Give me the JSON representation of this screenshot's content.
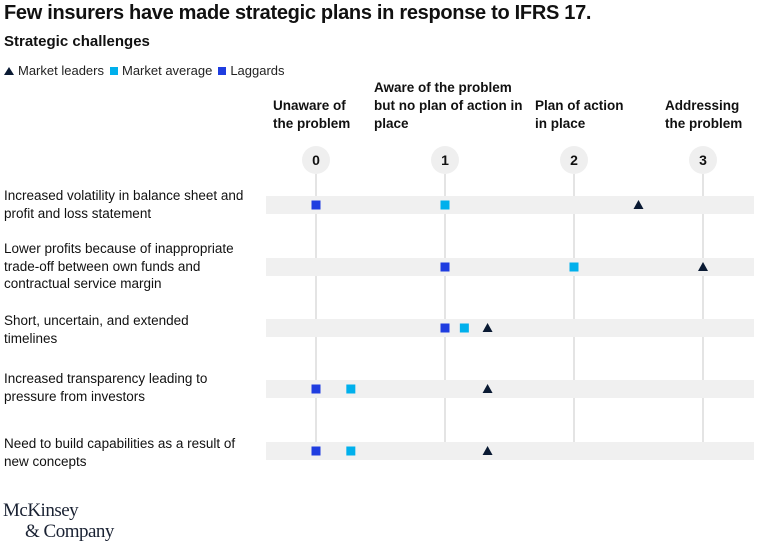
{
  "chart_data": {
    "type": "scatter",
    "title": "Few insurers have made strategic plans in response to IFRS 17.",
    "subtitle": "Strategic challenges",
    "legend": [
      {
        "name": "Market leaders",
        "marker": "triangle",
        "color": "#0a1a33"
      },
      {
        "name": "Market average",
        "marker": "square",
        "color": "#00b0ec"
      },
      {
        "name": "Laggards",
        "marker": "square",
        "color": "#1f3de0"
      }
    ],
    "legend_placement": "top-left",
    "x_ticks": [
      0,
      1,
      2,
      3
    ],
    "x_tick_labels": [
      "Unaware of the problem",
      "Aware of the problem but no plan of action in place",
      "Plan of action in place",
      "Addressing the problem"
    ],
    "xlim": [
      0,
      3
    ],
    "categories": [
      "Increased  volatility in balance sheet and profit and loss statement",
      "Lower profits because of inappropriate trade-off between own funds and contractual service margin",
      "Short, uncertain, and extended timelines",
      "Increased transparency leading to pressure from investors",
      "Need to build capabilities as a result of new concepts"
    ],
    "series": [
      {
        "name": "Market leaders",
        "values": [
          2.5,
          3,
          1.33,
          1.33,
          1.33
        ]
      },
      {
        "name": "Market average",
        "values": [
          1,
          2,
          1.15,
          0.27,
          0.27
        ]
      },
      {
        "name": "Laggards",
        "values": [
          0,
          1,
          1,
          0,
          0
        ]
      }
    ]
  },
  "logo": {
    "line1": "McKinsey",
    "line2": "& Company"
  }
}
